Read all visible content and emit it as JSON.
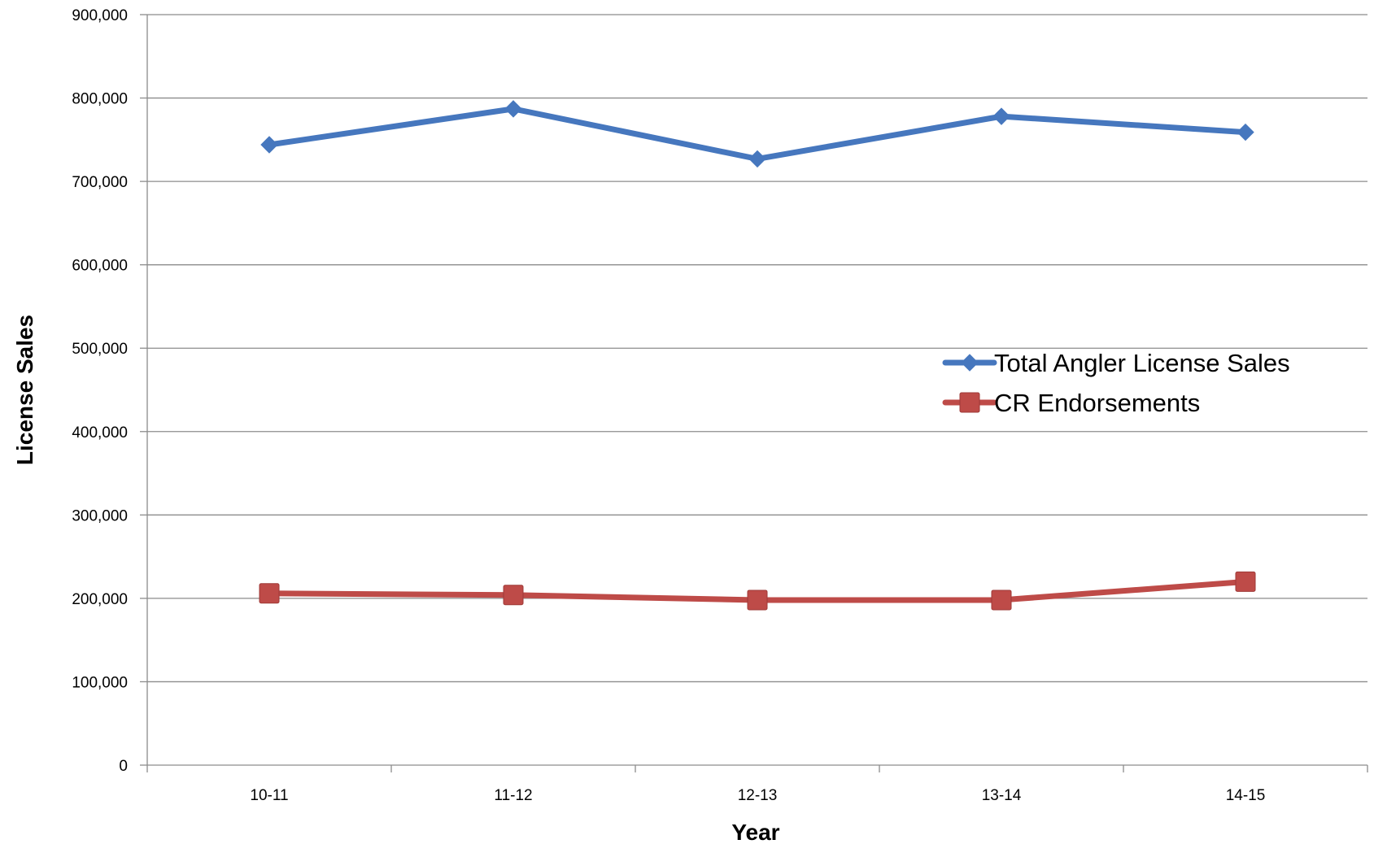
{
  "chart_data": {
    "type": "line",
    "title": "",
    "xlabel": "Year",
    "ylabel": "License Sales",
    "categories": [
      "10-11",
      "11-12",
      "12-13",
      "13-14",
      "14-15"
    ],
    "ylim": [
      0,
      900000
    ],
    "yticks": [
      0,
      100000,
      200000,
      300000,
      400000,
      500000,
      600000,
      700000,
      800000,
      900000
    ],
    "ytick_labels": [
      "0",
      "100,000",
      "200,000",
      "300,000",
      "400,000",
      "500,000",
      "600,000",
      "700,000",
      "800,000",
      "900,000"
    ],
    "grid": true,
    "legend_position": "right",
    "series": [
      {
        "name": "Total Angler License Sales",
        "values": [
          744000,
          787000,
          727000,
          778000,
          759000
        ],
        "color": "#4677BE",
        "marker": "diamond"
      },
      {
        "name": "CR Endorsements",
        "values": [
          206000,
          204000,
          198000,
          198000,
          220000
        ],
        "color": "#BE4B48",
        "marker": "square"
      }
    ]
  }
}
